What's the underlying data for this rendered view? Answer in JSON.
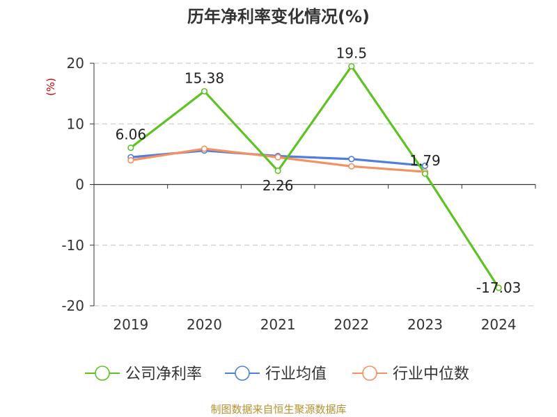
{
  "chart_data": {
    "type": "line",
    "title": "历年净利率变化情况(%)",
    "ylabel": "(%)",
    "categories": [
      "2019",
      "2020",
      "2021",
      "2022",
      "2023",
      "2024"
    ],
    "ylim": [
      -20,
      20
    ],
    "yticks": [
      20,
      10,
      0,
      -10,
      -20
    ],
    "grid": true,
    "legend_position": "bottom",
    "series": [
      {
        "name": "公司净利率",
        "color": "#5cc323",
        "values": [
          6.06,
          15.38,
          2.26,
          19.5,
          1.79,
          -17.03
        ],
        "labels": [
          "6.06",
          "15.38",
          "2.26",
          "19.5",
          "1.79",
          "-17.03"
        ]
      },
      {
        "name": "行业均值",
        "color": "#4f7fdd",
        "values": [
          4.5,
          5.6,
          4.7,
          4.2,
          3.1,
          null
        ]
      },
      {
        "name": "行业中位数",
        "color": "#f59060",
        "values": [
          4.0,
          5.9,
          4.5,
          3.0,
          2.1,
          null
        ]
      }
    ]
  },
  "source_text": "制图数据来自恒生聚源数据库"
}
